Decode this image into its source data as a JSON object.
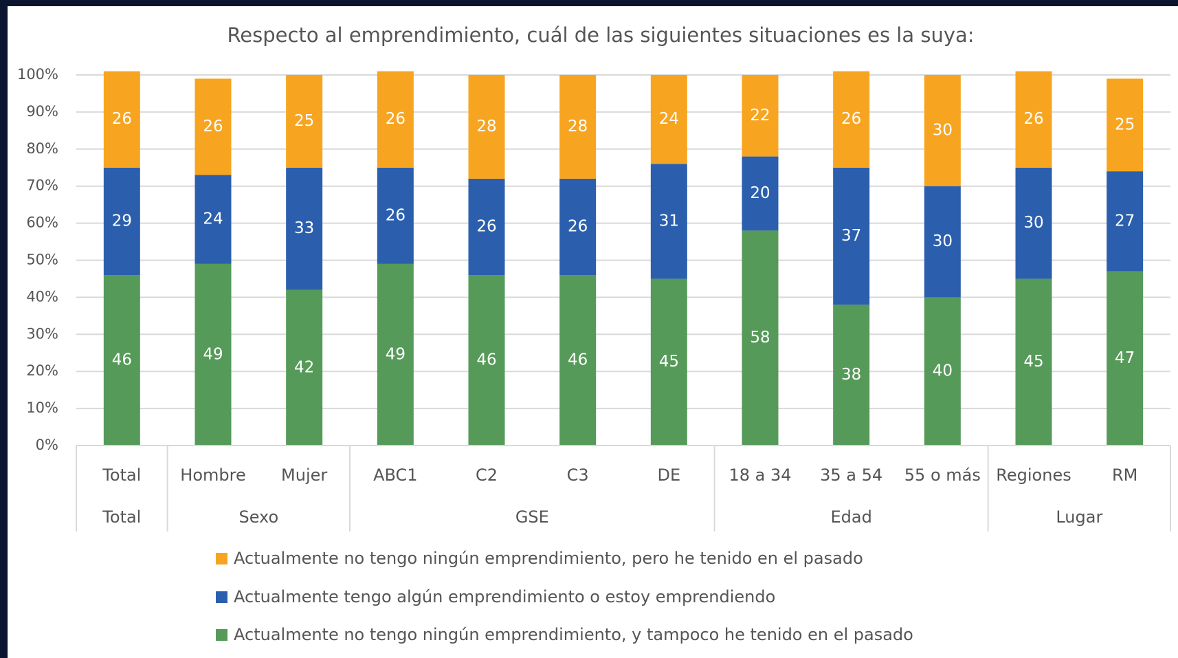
{
  "chart_data": {
    "type": "stacked_bar",
    "title": "Respecto al emprendimiento, cuál de las siguientes situaciones es la suya:",
    "groups": [
      {
        "label": "Total",
        "categories": [
          "Total"
        ]
      },
      {
        "label": "Sexo",
        "categories": [
          "Hombre",
          "Mujer"
        ]
      },
      {
        "label": "GSE",
        "categories": [
          "ABC1",
          "C2",
          "C3",
          "DE"
        ]
      },
      {
        "label": "Edad",
        "categories": [
          "18 a 34",
          "35 a 54",
          "55 o más"
        ]
      },
      {
        "label": "Lugar",
        "categories": [
          "Regiones",
          "RM"
        ]
      }
    ],
    "series": [
      {
        "name": "Actualmente no tengo ningún emprendimiento, y tampoco he tenido en el pasado",
        "color": "#569a59",
        "values": [
          46,
          49,
          42,
          49,
          46,
          46,
          45,
          58,
          38,
          40,
          45,
          47
        ]
      },
      {
        "name": "Actualmente tengo algún emprendimiento o estoy emprendiendo",
        "color": "#2b5fad",
        "values": [
          29,
          24,
          33,
          26,
          26,
          26,
          31,
          20,
          37,
          30,
          30,
          27
        ]
      },
      {
        "name": "Actualmente no tengo ningún emprendimiento, pero he tenido en el pasado",
        "color": "#f7a520",
        "values": [
          26,
          26,
          25,
          26,
          28,
          28,
          24,
          22,
          26,
          30,
          26,
          25
        ]
      }
    ],
    "ylim": [
      0,
      100
    ],
    "yticks": [
      {
        "value": 0,
        "label": "0%"
      },
      {
        "value": 10,
        "label": "10%"
      },
      {
        "value": 20,
        "label": "20%"
      },
      {
        "value": 30,
        "label": "30%"
      },
      {
        "value": 40,
        "label": "40%"
      },
      {
        "value": 50,
        "label": "50%"
      },
      {
        "value": 60,
        "label": "60%"
      },
      {
        "value": 70,
        "label": "70%"
      },
      {
        "value": 80,
        "label": "80%"
      },
      {
        "value": 90,
        "label": "90%"
      },
      {
        "value": 100,
        "label": "100%"
      }
    ],
    "grid": true
  }
}
